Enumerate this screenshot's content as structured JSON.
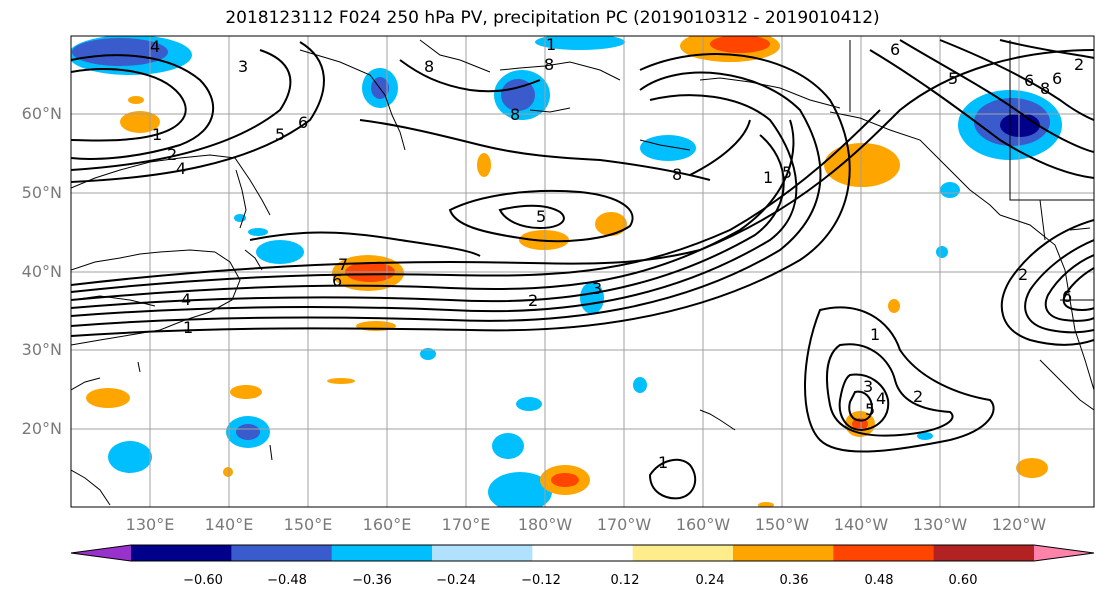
{
  "title": "2018123112 F024 250 hPa PV, precipitation PC (2019010312 - 2019010412)",
  "lat_labels": [
    "60°N",
    "50°N",
    "40°N",
    "30°N",
    "20°N"
  ],
  "lon_labels": [
    "130°E",
    "140°E",
    "150°E",
    "160°E",
    "170°E",
    "180°W",
    "170°W",
    "160°W",
    "150°W",
    "140°W",
    "130°W",
    "120°W"
  ],
  "colorbar": {
    "ticks": [
      "−0.60",
      "−0.48",
      "−0.36",
      "−0.24",
      "−0.12",
      "0.12",
      "0.24",
      "0.36",
      "0.48",
      "0.60"
    ],
    "colors": [
      "#9932cc",
      "#00008b",
      "#3a5bcc",
      "#00bfff",
      "#b0e2ff",
      "#ffffff",
      "#ffec8b",
      "#ffa500",
      "#ff4500",
      "#b22222",
      "#ff82ab"
    ]
  },
  "contour_labels": [
    "4",
    "3",
    "1",
    "2",
    "4",
    "5",
    "6",
    "8",
    "8",
    "1",
    "8",
    "8",
    "1",
    "5",
    "6",
    "5",
    "6",
    "7",
    "6",
    "5",
    "3",
    "2",
    "4",
    "1",
    "1",
    "3",
    "4",
    "5",
    "2",
    "1",
    "2",
    "6",
    "8",
    "6",
    "2"
  ],
  "colors": {
    "contour": "#000000",
    "grid": "#a0a0a0",
    "coast": "#000000"
  }
}
